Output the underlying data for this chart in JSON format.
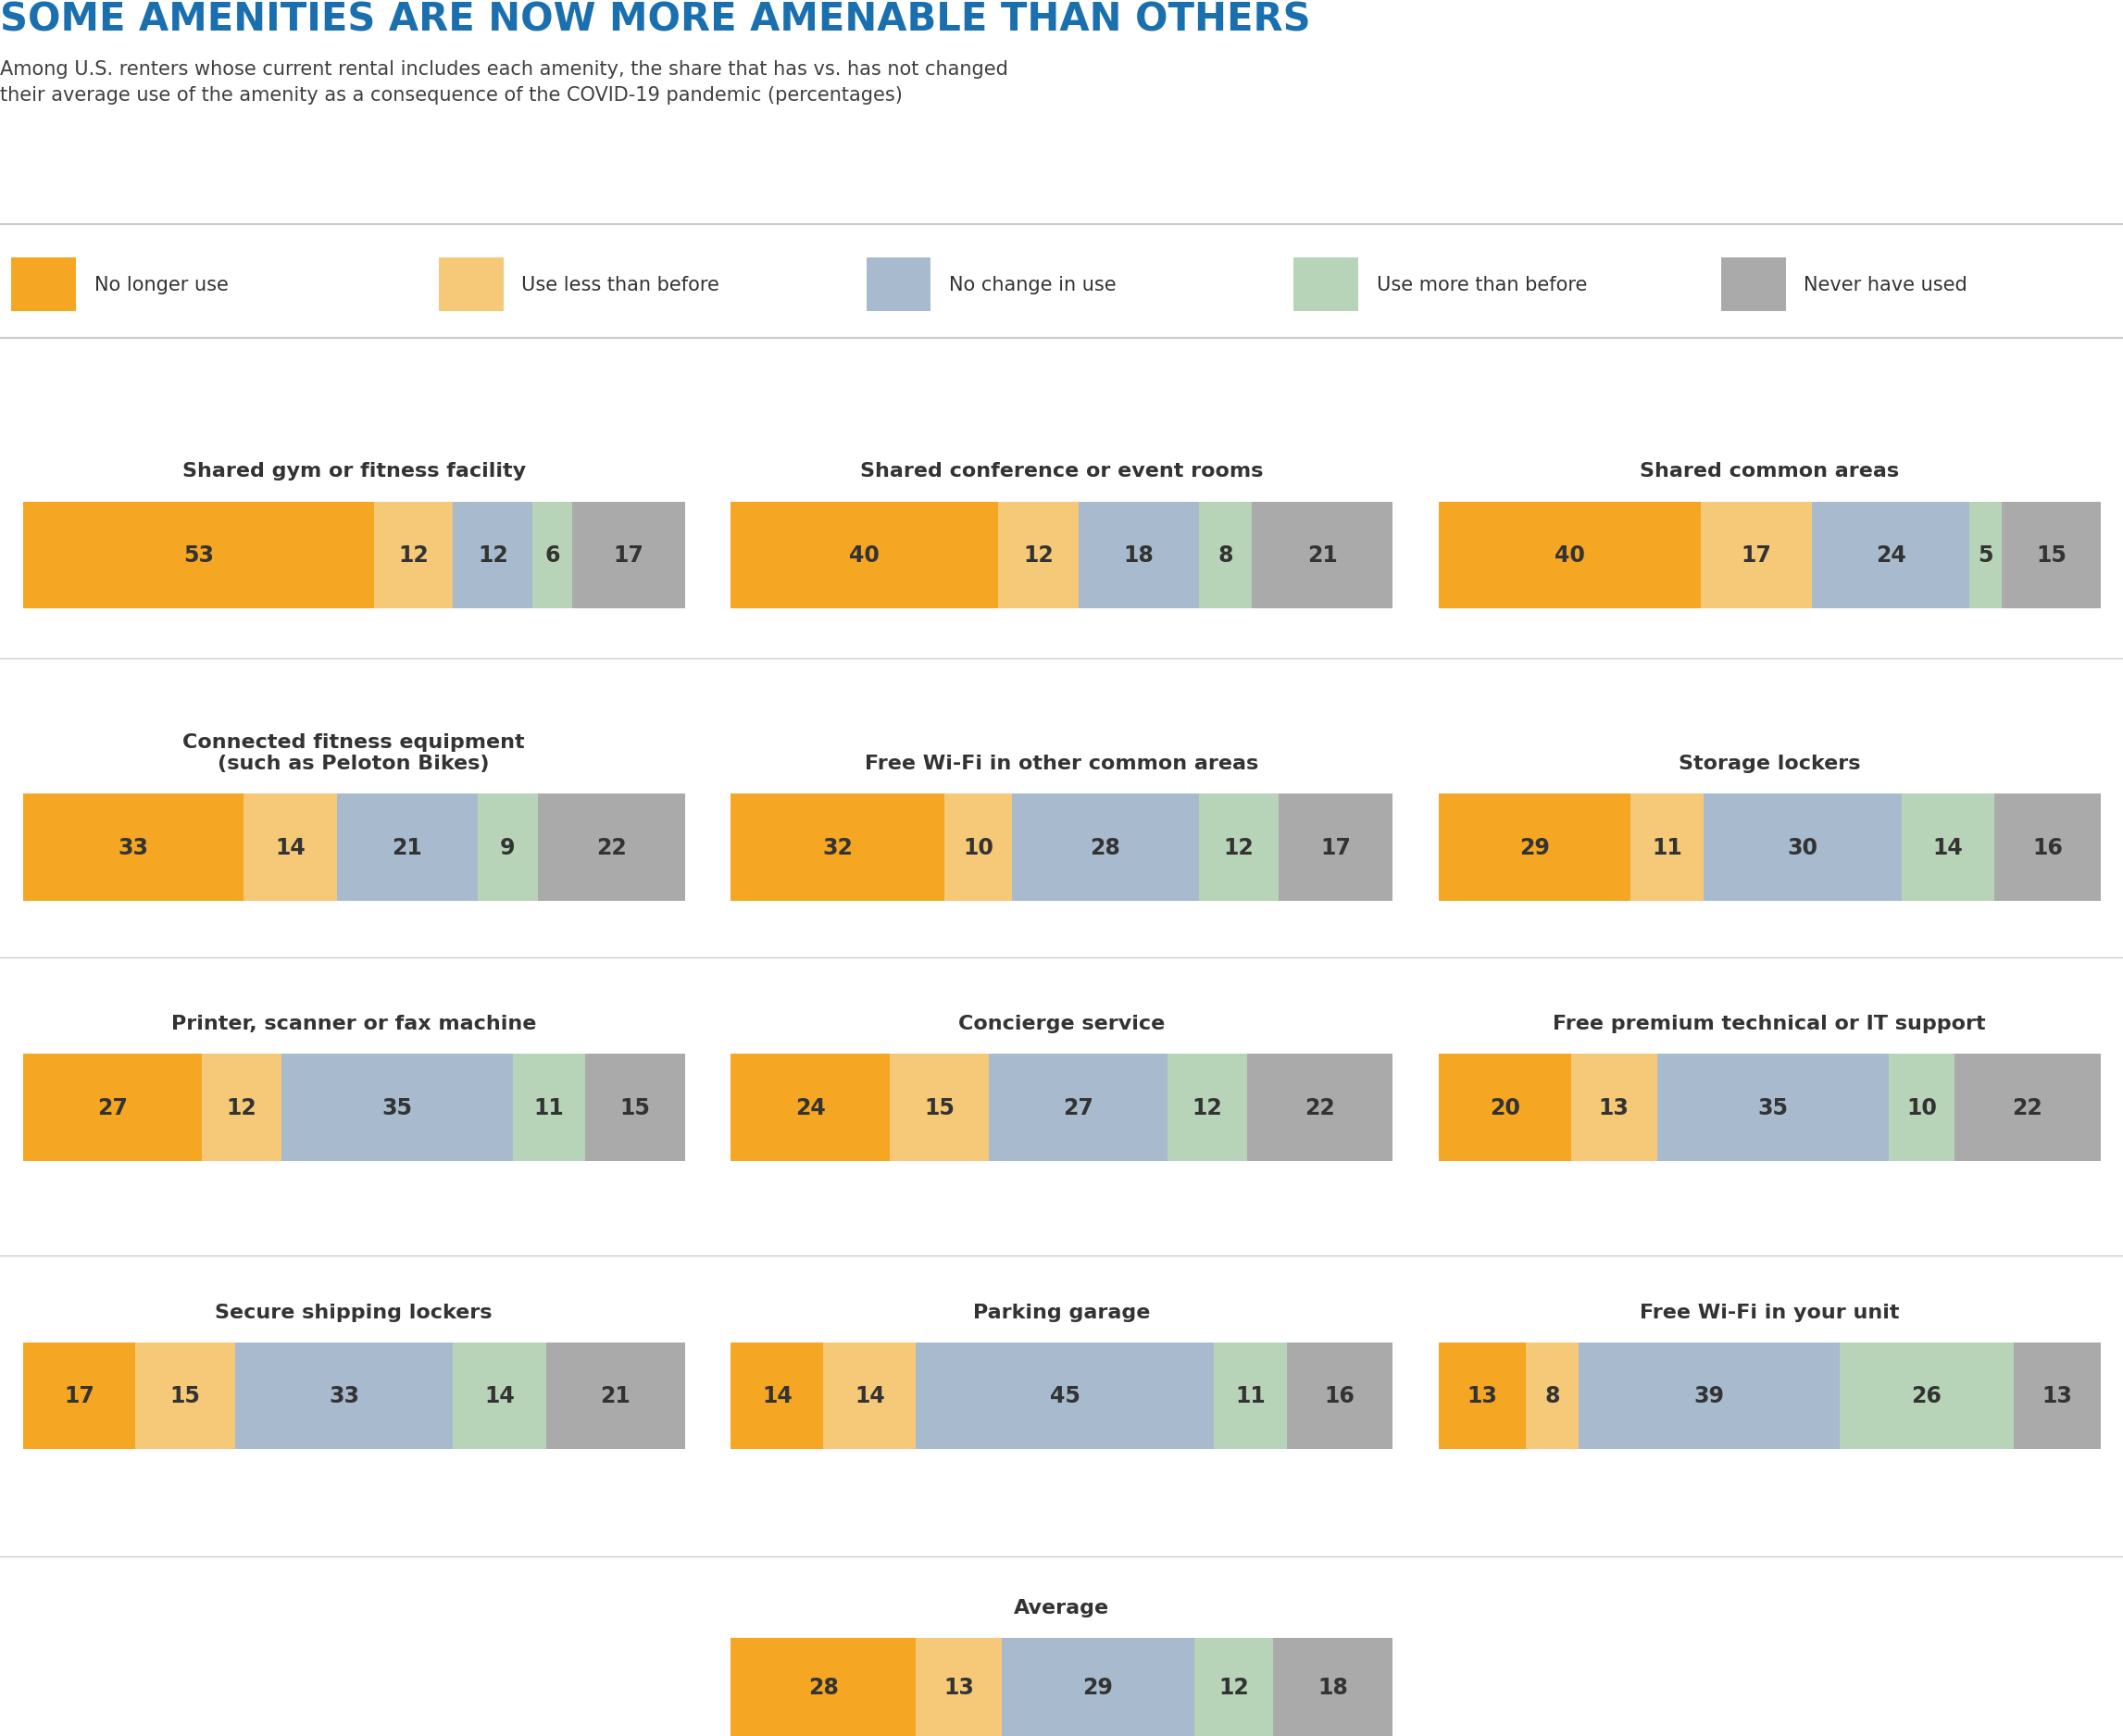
{
  "title": "SOME AMENITIES ARE NOW MORE AMENABLE THAN OTHERS",
  "subtitle": "Among U.S. renters whose current rental includes each amenity, the share that has vs. has not changed\ntheir average use of the amenity as a consequence of the COVID-19 pandemic (percentages)",
  "title_color": "#1a6faf",
  "subtitle_color": "#404040",
  "colors": {
    "no_longer": "#F5A623",
    "less_than": "#F5C978",
    "no_change": "#A8BBCE",
    "more_than": "#B8D4B8",
    "never": "#AAAAAA"
  },
  "legend_labels": [
    "No longer use",
    "Use less than before",
    "No change in use",
    "Use more than before",
    "Never have used"
  ],
  "categories": [
    {
      "name": "Shared gym or fitness facility",
      "col": 0,
      "row": 0,
      "values": [
        53,
        12,
        12,
        6,
        17
      ]
    },
    {
      "name": "Shared conference or event rooms",
      "col": 1,
      "row": 0,
      "values": [
        40,
        12,
        18,
        8,
        21
      ]
    },
    {
      "name": "Shared common areas",
      "col": 2,
      "row": 0,
      "values": [
        40,
        17,
        24,
        5,
        15
      ]
    },
    {
      "name": "Connected fitness equipment\n(such as Peloton Bikes)",
      "col": 0,
      "row": 1,
      "values": [
        33,
        14,
        21,
        9,
        22
      ]
    },
    {
      "name": "Free Wi-Fi in other common areas",
      "col": 1,
      "row": 1,
      "values": [
        32,
        10,
        28,
        12,
        17
      ]
    },
    {
      "name": "Storage lockers",
      "col": 2,
      "row": 1,
      "values": [
        29,
        11,
        30,
        14,
        16
      ]
    },
    {
      "name": "Printer, scanner or fax machine",
      "col": 0,
      "row": 2,
      "values": [
        27,
        12,
        35,
        11,
        15
      ]
    },
    {
      "name": "Concierge service",
      "col": 1,
      "row": 2,
      "values": [
        24,
        15,
        27,
        12,
        22
      ]
    },
    {
      "name": "Free premium technical or IT support",
      "col": 2,
      "row": 2,
      "values": [
        20,
        13,
        35,
        10,
        22
      ]
    },
    {
      "name": "Secure shipping lockers",
      "col": 0,
      "row": 3,
      "values": [
        17,
        15,
        33,
        14,
        21
      ]
    },
    {
      "name": "Parking garage",
      "col": 1,
      "row": 3,
      "values": [
        14,
        14,
        45,
        11,
        16
      ]
    },
    {
      "name": "Free Wi-Fi in your unit",
      "col": 2,
      "row": 3,
      "values": [
        13,
        8,
        39,
        26,
        13
      ]
    },
    {
      "name": "Average",
      "col": 1,
      "row": 4,
      "values": [
        28,
        13,
        29,
        12,
        18
      ]
    }
  ],
  "bg_color": "#FFFFFF",
  "sep_color": "#CCCCCC",
  "label_color": "#333333",
  "title_fontsize": 30,
  "subtitle_fontsize": 15,
  "legend_fontsize": 15,
  "cat_title_fontsize": 16,
  "bar_num_fontsize": 17
}
